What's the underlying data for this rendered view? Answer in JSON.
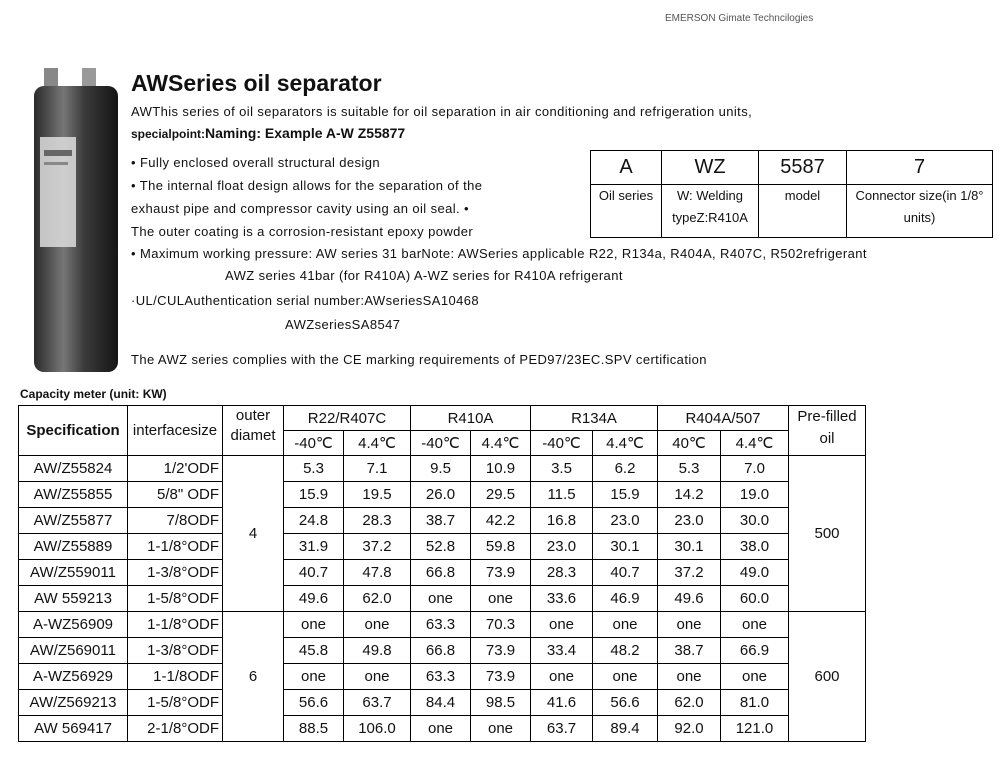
{
  "header": {
    "brand": "EMERSON Gimate Techncilogies",
    "title": "AWSeries oil separator"
  },
  "intro": {
    "line": "AWThis series of oil separators is suitable for oil separation in air conditioning and refrigeration units,",
    "special_label": "specialpoint:",
    "naming": "Naming: Example A-W Z55877"
  },
  "features": [
    {
      "text": "• Fully enclosed overall structural design"
    },
    {
      "text": "• The internal float design allows for the separation of the"
    },
    {
      "text": "exhaust pipe and compressor cavity using an oil seal. •"
    },
    {
      "text": "The outer coating is a corrosion-resistant epoxy powder"
    },
    {
      "text": "• Maximum working pressure: AW series 31 barNote: AWSeries applicable R22, R134a, R404A, R407C, R502refrigerant"
    },
    {
      "text": "AWZ series 41bar (for R410A) A-WZ series for R410A refrigerant"
    },
    {
      "text": "·UL/CULAuthentication serial number:AWseriesSA10468"
    },
    {
      "text": "AWZseriesSA8547"
    },
    {
      "text": "The AWZ series complies with the CE marking requirements of PED97/23EC.SPV certification"
    }
  ],
  "naming_table": {
    "codes": [
      "A",
      "WZ",
      "5587",
      "7"
    ],
    "meanings": [
      "Oil series",
      "W: Welding typeZ:R410A",
      "model",
      "Connector size(in 1/8° units)"
    ]
  },
  "capacity_label": "Capacity meter (unit: KW)",
  "table": {
    "headers": [
      "Specification",
      "interfacesize",
      "outer diamet",
      "R22/R407C",
      "R410A",
      "R134A",
      "R404A/507",
      "Pre-filled oil"
    ],
    "subheaders": [
      "-40℃",
      "4.4℃",
      "-40℃",
      "4.4℃",
      "-40℃",
      "4.4℃",
      "40℃",
      "4.4℃"
    ],
    "groups": [
      {
        "outer_diameter": "4",
        "prefilled_oil": "500",
        "rows": [
          {
            "spec": "AW/Z55824",
            "interface": "1/2'ODF",
            "values": [
              "5.3",
              "7.1",
              "9.5",
              "10.9",
              "3.5",
              "6.2",
              "5.3",
              "7.0"
            ]
          },
          {
            "spec": "AW/Z55855",
            "interface": "5/8\" ODF",
            "values": [
              "15.9",
              "19.5",
              "26.0",
              "29.5",
              "11.5",
              "15.9",
              "14.2",
              "19.0"
            ]
          },
          {
            "spec": "AW/Z55877",
            "interface": "7/8ODF",
            "values": [
              "24.8",
              "28.3",
              "38.7",
              "42.2",
              "16.8",
              "23.0",
              "23.0",
              "30.0"
            ]
          },
          {
            "spec": "AW/Z55889",
            "interface": "1-1/8°ODF",
            "values": [
              "31.9",
              "37.2",
              "52.8",
              "59.8",
              "23.0",
              "30.1",
              "30.1",
              "38.0"
            ]
          },
          {
            "spec": "AW/Z559011",
            "interface": "1-3/8°ODF",
            "values": [
              "40.7",
              "47.8",
              "66.8",
              "73.9",
              "28.3",
              "40.7",
              "37.2",
              "49.0"
            ]
          },
          {
            "spec": "AW 559213",
            "interface": "1-5/8°ODF",
            "values": [
              "49.6",
              "62.0",
              "one",
              "one",
              "33.6",
              "46.9",
              "49.6",
              "60.0"
            ]
          }
        ]
      },
      {
        "outer_diameter": "6",
        "prefilled_oil": "600",
        "rows": [
          {
            "spec": "A-WZ56909",
            "interface": "1-1/8°ODF",
            "values": [
              "one",
              "one",
              "63.3",
              "70.3",
              "one",
              "one",
              "one",
              "one"
            ]
          },
          {
            "spec": "AW/Z569011",
            "interface": "1-3/8°ODF",
            "values": [
              "45.8",
              "49.8",
              "66.8",
              "73.9",
              "33.4",
              "48.2",
              "38.7",
              "66.9"
            ]
          },
          {
            "spec": "A-WZ56929",
            "interface": "1-1/8ODF",
            "values": [
              "one",
              "one",
              "63.3",
              "73.9",
              "one",
              "one",
              "one",
              "one"
            ]
          },
          {
            "spec": "AW/Z569213",
            "interface": "1-5/8°ODF",
            "values": [
              "56.6",
              "63.7",
              "84.4",
              "98.5",
              "41.6",
              "56.6",
              "62.0",
              "81.0"
            ]
          },
          {
            "spec": "AW 569417",
            "interface": "2-1/8°ODF",
            "values": [
              "88.5",
              "106.0",
              "one",
              "one",
              "63.7",
              "89.4",
              "92.0",
              "121.0"
            ]
          }
        ]
      }
    ]
  }
}
